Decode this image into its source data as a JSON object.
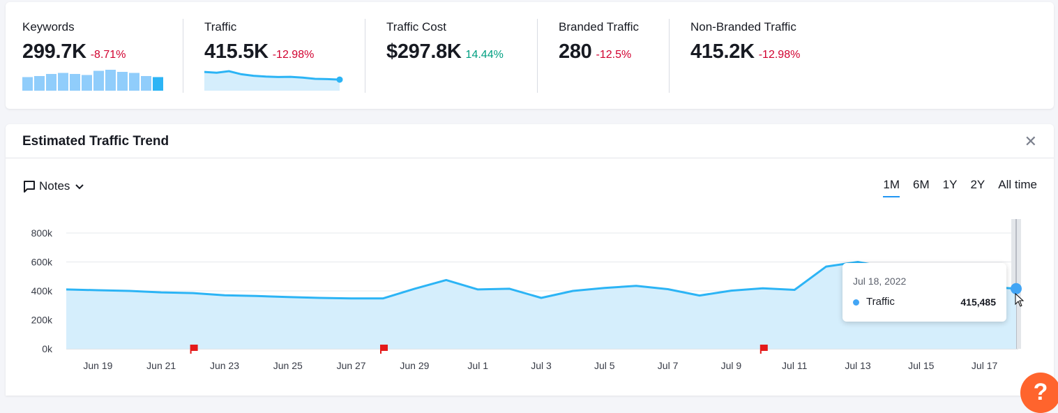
{
  "summary": {
    "metrics": [
      {
        "label": "Keywords",
        "value": "299.7K",
        "delta": "-8.71%",
        "delta_sign": "neg"
      },
      {
        "label": "Traffic",
        "value": "415.5K",
        "delta": "-12.98%",
        "delta_sign": "neg"
      },
      {
        "label": "Traffic Cost",
        "value": "$297.8K",
        "delta": "14.44%",
        "delta_sign": "pos"
      },
      {
        "label": "Branded Traffic",
        "value": "280",
        "delta": "-12.5%",
        "delta_sign": "neg"
      },
      {
        "label": "Non-Branded Traffic",
        "value": "415.2K",
        "delta": "-12.98%",
        "delta_sign": "neg"
      }
    ],
    "keywords_sparkbars": [
      0.65,
      0.7,
      0.8,
      0.85,
      0.8,
      0.75,
      0.95,
      1.0,
      0.9,
      0.85,
      0.7,
      0.65
    ],
    "traffic_sparkline": [
      0.95,
      0.9,
      1.0,
      0.8,
      0.7,
      0.65,
      0.62,
      0.63,
      0.58,
      0.5,
      0.48,
      0.45
    ]
  },
  "trend": {
    "title": "Estimated Traffic Trend",
    "notes_label": "Notes",
    "ranges": [
      "1M",
      "6M",
      "1Y",
      "2Y",
      "All time"
    ],
    "active_range": "1M",
    "tooltip": {
      "date": "Jul 18, 2022",
      "series": "Traffic",
      "value": "415,485"
    },
    "help_label": "?"
  },
  "chart_data": {
    "type": "area",
    "ylim": [
      0,
      800000
    ],
    "y_ticks": [
      0,
      200000,
      400000,
      600000,
      800000
    ],
    "y_tick_labels": [
      "0k",
      "200k",
      "400k",
      "600k",
      "800k"
    ],
    "x_tick_labels": [
      "Jun 19",
      "Jun 21",
      "Jun 23",
      "Jun 25",
      "Jun 27",
      "Jun 29",
      "Jul 1",
      "Jul 3",
      "Jul 5",
      "Jul 7",
      "Jul 9",
      "Jul 11",
      "Jul 13",
      "Jul 15",
      "Jul 17"
    ],
    "x_dates": [
      "Jun 18",
      "Jun 19",
      "Jun 20",
      "Jun 21",
      "Jun 22",
      "Jun 23",
      "Jun 24",
      "Jun 25",
      "Jun 26",
      "Jun 27",
      "Jun 28",
      "Jun 29",
      "Jun 30",
      "Jul 1",
      "Jul 2",
      "Jul 3",
      "Jul 4",
      "Jul 5",
      "Jul 6",
      "Jul 7",
      "Jul 8",
      "Jul 9",
      "Jul 10",
      "Jul 11",
      "Jul 12",
      "Jul 13",
      "Jul 14",
      "Jul 15",
      "Jul 16",
      "Jul 17",
      "Jul 18"
    ],
    "series": [
      {
        "name": "Traffic",
        "color": "#2cb4f5",
        "values": [
          410000,
          405000,
          400000,
          390000,
          385000,
          370000,
          365000,
          358000,
          352000,
          348000,
          348000,
          415000,
          475000,
          410000,
          415000,
          352000,
          400000,
          420000,
          435000,
          412000,
          368000,
          402000,
          418000,
          407000,
          568000,
          600000,
          560000,
          500000,
          460000,
          430000,
          415485
        ]
      }
    ],
    "note_flags": [
      "Jun 22",
      "Jun 28",
      "Jul 10"
    ]
  }
}
